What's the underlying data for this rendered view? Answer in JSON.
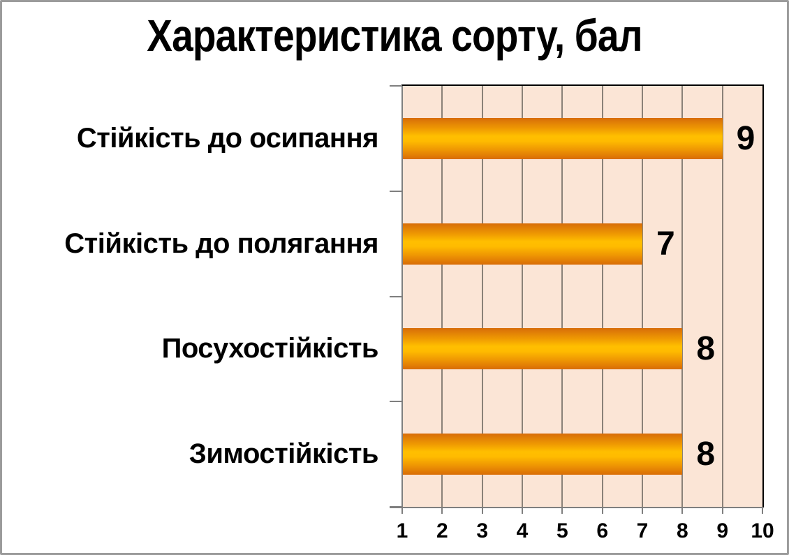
{
  "chart_data": {
    "type": "bar",
    "orientation": "horizontal",
    "title": "Характеристика сорту, бал",
    "categories": [
      "Стійкість до осипання",
      "Стійкість до полягання",
      "Посухостійкість",
      "Зимостійкість"
    ],
    "values": [
      9,
      7,
      8,
      8
    ],
    "data_labels_shown": true,
    "xlabel": "",
    "ylabel": "",
    "xlim": [
      1,
      10
    ],
    "x_ticks": [
      1,
      2,
      3,
      4,
      5,
      6,
      7,
      8,
      9,
      10
    ],
    "gridlines": "vertical-major",
    "legend": "none",
    "colors": {
      "plot_background": "#fbe5d6",
      "page_background": "#ffffff",
      "gridline": "#8a8178",
      "axis_line": "#7f7f7f",
      "plot_border": "#000000",
      "bar_gradient_edge": "#d76d09",
      "bar_gradient_center": "#ffbf00",
      "text": "#000000",
      "outer_border": "#9b9b9b"
    }
  }
}
